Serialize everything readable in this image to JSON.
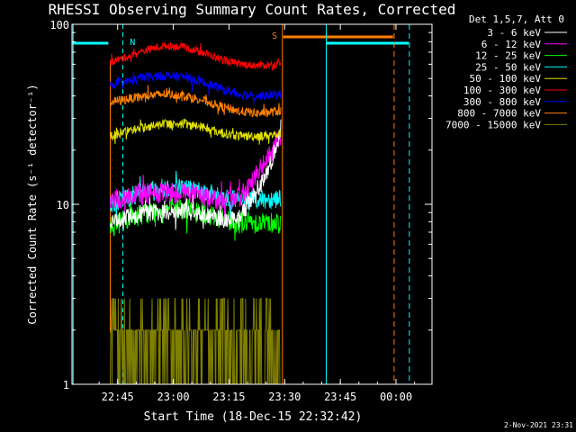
{
  "chart_data": {
    "type": "line",
    "title": "RHESSI Observing Summary Count Rates, Corrected",
    "xlabel": "Start Time (18-Dec-15 22:32:42)",
    "ylabel": "Corrected Count Rate (s⁻¹ detector⁻¹)",
    "y_scale": "log",
    "ylim": [
      1,
      100
    ],
    "xlim_minutes_after_start": [
      0,
      97
    ],
    "x_ticks": [
      "22:45",
      "23:00",
      "23:15",
      "23:30",
      "23:45",
      "00:00"
    ],
    "y_ticks": [
      "1",
      "10",
      "100"
    ],
    "legend_title": "Det 1,5,7, Att 0",
    "legend_position": "right",
    "timestamp": "2-Nov-2021 23:31",
    "data_window_minutes": [
      10.3,
      56.3
    ],
    "markers": [
      {
        "label": "N",
        "color": "#00ffff"
      },
      {
        "label": "S",
        "color": "#ff8000"
      }
    ],
    "series": [
      {
        "name": "3 - 6 keV",
        "color": "#ffffff",
        "t": [
          10.5,
          15,
          20,
          25,
          30,
          35,
          38,
          41,
          44,
          46,
          48,
          50,
          52,
          54,
          56
        ],
        "y": [
          8,
          8.5,
          9,
          9,
          9.2,
          9,
          8.5,
          8.3,
          8.2,
          9,
          10.5,
          12,
          14,
          18,
          25
        ]
      },
      {
        "name": "6 - 12 keV",
        "color": "#ff00ff",
        "t": [
          10.5,
          15,
          20,
          25,
          30,
          35,
          40,
          44,
          46,
          48,
          50,
          52,
          54,
          56
        ],
        "y": [
          10.5,
          11,
          11.5,
          11.5,
          11.8,
          11.2,
          10.5,
          10.5,
          11.5,
          13,
          15,
          17,
          20,
          24
        ]
      },
      {
        "name": "12 - 25 keV",
        "color": "#00ff00",
        "t": [
          10.5,
          15,
          20,
          25,
          30,
          35,
          40,
          45,
          50,
          56
        ],
        "y": [
          7.5,
          8.5,
          9,
          9.5,
          9.5,
          9,
          8.5,
          8,
          8,
          8
        ]
      },
      {
        "name": "25 - 50 keV",
        "color": "#00ffff",
        "t": [
          10.5,
          15,
          20,
          25,
          30,
          35,
          40,
          45,
          50,
          56
        ],
        "y": [
          10,
          11,
          12,
          12.5,
          12.5,
          12,
          11,
          10.5,
          10.5,
          11
        ]
      },
      {
        "name": "50 - 100 keV",
        "color": "#e0e000",
        "t": [
          10.5,
          15,
          20,
          25,
          30,
          35,
          40,
          45,
          50,
          56
        ],
        "y": [
          24,
          25.5,
          27,
          28,
          28,
          27,
          25,
          24,
          24,
          24.5
        ]
      },
      {
        "name": "100 - 300 keV",
        "color": "#ff0000",
        "t": [
          10.5,
          15,
          20,
          25,
          30,
          35,
          40,
          45,
          50,
          56
        ],
        "y": [
          62,
          66,
          72,
          76,
          75,
          70,
          64,
          60,
          59,
          60
        ]
      },
      {
        "name": "300 - 800 keV",
        "color": "#0000ff",
        "t": [
          10.5,
          15,
          20,
          25,
          30,
          35,
          40,
          45,
          50,
          56
        ],
        "y": [
          46,
          48,
          51,
          52,
          51,
          48,
          44,
          41,
          40,
          41
        ]
      },
      {
        "name": "800 - 7000 keV",
        "color": "#ff8000",
        "t": [
          10.5,
          15,
          20,
          25,
          30,
          35,
          40,
          45,
          50,
          56
        ],
        "y": [
          37,
          38.5,
          40,
          41,
          40.5,
          38,
          35,
          33,
          32,
          33
        ]
      },
      {
        "name": "7000 - 15000 keV",
        "color": "#808000",
        "t": [
          10.5,
          56
        ],
        "y": [
          1.5,
          1.5
        ]
      }
    ]
  }
}
